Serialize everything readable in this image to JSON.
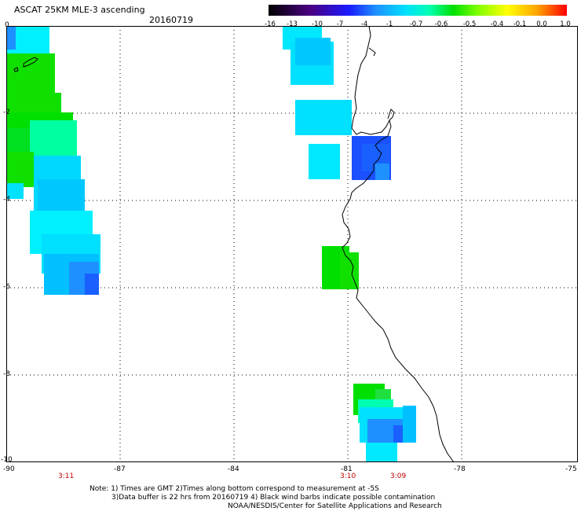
{
  "header": {
    "title": "ASCAT 25KM MLE-3 ascending",
    "date": "20160719"
  },
  "colorbar": {
    "labels": [
      "-16",
      "-13",
      "-10",
      "-7",
      "-4",
      "-1",
      "-0.7",
      "-0.6",
      "-0.5",
      "-0.4",
      "-0.1",
      "0.0",
      "1.0"
    ],
    "colors": [
      "#000000",
      "#4b0082",
      "#1a1aff",
      "#1e90ff",
      "#00e0ff",
      "#00ffb0",
      "#00e000",
      "#7fff00",
      "#ffff00",
      "#ffa500",
      "#ff0000"
    ]
  },
  "axes": {
    "x_ticks": [
      "-90",
      "-87",
      "-84",
      "-81",
      "-78",
      "-75"
    ],
    "y_ticks": [
      "0",
      "-2",
      "-4",
      "-6",
      "-8",
      "-10"
    ],
    "lon_range": [
      -90,
      -75
    ],
    "lat_range": [
      0,
      -10
    ]
  },
  "times": [
    "3:11",
    "3:10",
    "3:09"
  ],
  "notes": [
    "Note: 1) Times are GMT 2)Times along bottom correspond to measurement at -5S",
    "3)Data buffer is 22 hrs from 20160719 4) Black wind barbs indicate possible contamination",
    "NOAA/NESDIS/Center for Satellite Applications and Research"
  ]
}
